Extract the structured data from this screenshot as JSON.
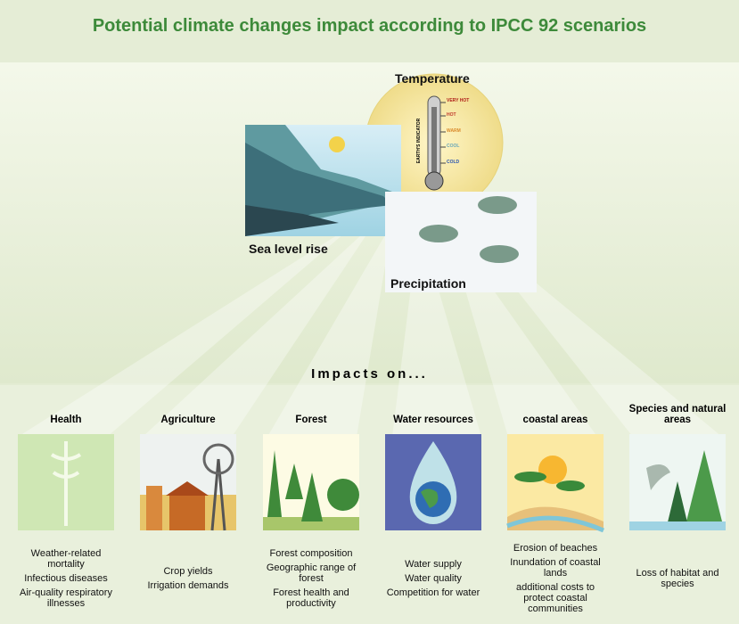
{
  "title": "Potential climate changes impact according to IPCC 92 scenarios",
  "drivers": {
    "temperature": "Temperature",
    "sea_level": "Sea level rise",
    "precipitation": "Precipitation"
  },
  "thermometer": {
    "scale_label": "EARTH'S INDICATOR",
    "levels": [
      "VERY HOT",
      "HOT",
      "WARM",
      "COOL",
      "COLD"
    ]
  },
  "impacts_heading": "Impacts on...",
  "impacts": [
    {
      "title": "Health",
      "items": [
        "Weather-related mortality",
        "Infectious diseases",
        "Air-quality respiratory illnesses"
      ]
    },
    {
      "title": "Agriculture",
      "items": [
        "Crop yields",
        "Irrigation demands"
      ]
    },
    {
      "title": "Forest",
      "items": [
        "Forest composition",
        "Geographic range of forest",
        "Forest health and productivity"
      ]
    },
    {
      "title": "Water resources",
      "items": [
        "Water supply",
        "Water quality",
        "Competition for water"
      ]
    },
    {
      "title": "coastal areas",
      "items": [
        "Erosion of beaches",
        "Inundation of coastal lands",
        "additional costs to protect coastal communities"
      ]
    },
    {
      "title": "Species and natural areas",
      "items": [
        "Loss of habitat and species"
      ]
    }
  ]
}
